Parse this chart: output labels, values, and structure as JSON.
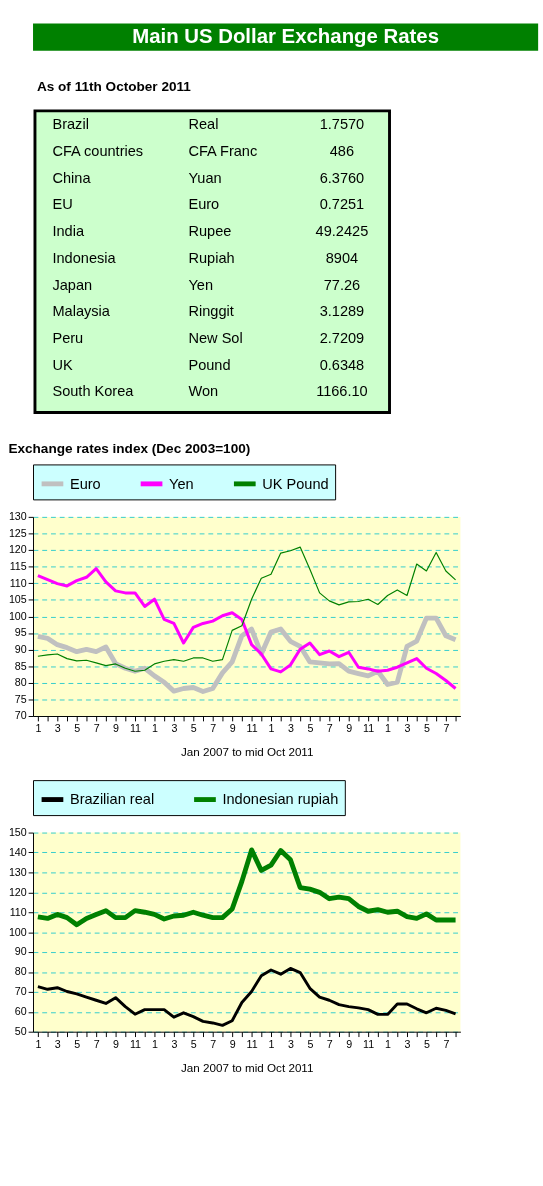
{
  "chart_data": [
    {
      "type": "other",
      "title": "Main US Dollar Exchange Rates",
      "subtitle": "As of 11th October 2011",
      "annotations": [
        "Brazil",
        "Real",
        "1.7570",
        "CFA countries",
        "CFA Franc",
        "486",
        "China",
        "Yuan",
        "6.3760",
        "EU",
        "Euro",
        "0.7251",
        "India",
        "Rupee",
        "49.2425",
        "Indonesia",
        "Rupiah",
        "8904",
        "Japan",
        "Yen",
        "77.26",
        "Malaysia",
        "Ringgit",
        "3.1289",
        "Peru",
        "New Sol",
        "2.7209",
        "UK",
        "Pound",
        "0.6348",
        "South Korea",
        "Won",
        "1166.10"
      ]
    },
    {
      "type": "line",
      "title": "Exchange rates index (Dec 2003=100)",
      "xlabel": "Jan 2007 to mid Oct  2011",
      "categories": [
        "1",
        null,
        "3",
        null,
        "5",
        null,
        "7",
        null,
        "9",
        null,
        "11",
        null,
        "1",
        null,
        "3",
        null,
        "5",
        null,
        "7",
        null,
        "9",
        null,
        "11",
        null,
        "1",
        null,
        "3",
        null,
        "5",
        null,
        "7",
        null,
        "9",
        null,
        "11",
        null,
        "1",
        null,
        "3",
        null,
        "5",
        null,
        "7",
        null
      ],
      "series": [
        {
          "name": "Euro",
          "color": "#c0c0c0",
          "values": [
            94.0,
            93.4,
            91.5,
            90.6,
            89.4,
            90.1,
            89.4,
            90.8,
            85.8,
            84.4,
            83.5,
            84.4,
            82.1,
            80.2,
            77.5,
            78.3,
            78.6,
            77.4,
            78.3,
            83.0,
            86.3,
            94.2,
            96.2,
            88.7,
            95.3,
            96.2,
            92.5,
            91.0,
            86.3,
            86.0,
            85.7,
            85.8,
            83.5,
            82.8,
            82.1,
            83.5,
            79.5,
            80.2,
            91.0,
            92.6,
            99.5,
            99.5,
            94.2,
            93.0
          ]
        },
        {
          "name": "Yen",
          "color": "#ff00ff",
          "values": [
            112.3,
            111.1,
            109.9,
            109.2,
            110.8,
            111.8,
            114.4,
            110.4,
            107.7,
            107.1,
            107.1,
            103.0,
            105.2,
            99.1,
            97.9,
            92.0,
            96.7,
            97.9,
            98.6,
            100.2,
            101.1,
            99.1,
            91.5,
            88.7,
            84.2,
            83.3,
            85.4,
            90.1,
            92.0,
            88.5,
            89.6,
            87.9,
            89.2,
            84.7,
            84.2,
            83.5,
            83.8,
            84.7,
            86.0,
            87.3,
            84.4,
            82.8,
            80.7,
            78.3
          ]
        },
        {
          "name": "UK Pound",
          "color": "#008000",
          "values": [
            88.0,
            88.4,
            88.7,
            87.3,
            86.6,
            86.8,
            86.0,
            85.2,
            85.7,
            84.4,
            83.5,
            83.8,
            85.7,
            86.5,
            87.0,
            86.5,
            87.5,
            87.5,
            86.5,
            87.0,
            95.8,
            97.2,
            105.2,
            111.5,
            112.7,
            119.1,
            119.8,
            120.9,
            114.2,
            107.1,
            104.7,
            103.5,
            104.4,
            104.5,
            105.2,
            103.6,
            106.3,
            108.0,
            106.3,
            115.8,
            113.7,
            119.3,
            113.7,
            111.0
          ]
        }
      ],
      "ylim": [
        70,
        130
      ],
      "yticks": [
        70,
        75,
        80,
        85,
        90,
        95,
        100,
        105,
        110,
        115,
        120,
        125,
        130
      ],
      "grid": "y",
      "legend": "top"
    },
    {
      "type": "line",
      "xlabel": "Jan 2007 to mid Oct 2011",
      "categories": [
        "1",
        null,
        "3",
        null,
        "5",
        null,
        "7",
        null,
        "9",
        null,
        "11",
        null,
        "1",
        null,
        "3",
        null,
        "5",
        null,
        "7",
        null,
        "9",
        null,
        "11",
        null,
        "1",
        null,
        "3",
        null,
        "5",
        null,
        "7",
        null,
        "9",
        null,
        "11",
        null,
        "1",
        null,
        "3",
        null,
        "5",
        null,
        "7",
        null
      ],
      "series": [
        {
          "name": "Brazilian real",
          "color": "#000000",
          "values": [
            72.6,
            71.3,
            72.1,
            70.2,
            69.0,
            67.4,
            65.8,
            64.2,
            67.1,
            62.6,
            58.8,
            61.1,
            61.1,
            61.1,
            57.3,
            59.5,
            57.6,
            55.2,
            54.4,
            53.2,
            55.5,
            64.7,
            70.2,
            78.1,
            81.0,
            78.9,
            81.8,
            79.7,
            71.8,
            67.4,
            65.8,
            63.6,
            62.6,
            62.0,
            61.1,
            58.7,
            58.7,
            63.9,
            63.9,
            61.5,
            59.5,
            61.8,
            60.7,
            59.0
          ]
        },
        {
          "name": "Indonesian rupiah",
          "color": "#008000",
          "values": [
            107.7,
            106.9,
            108.9,
            107.3,
            103.7,
            106.9,
            108.9,
            110.8,
            107.3,
            107.3,
            110.8,
            110.0,
            108.9,
            106.6,
            108.1,
            108.5,
            110.0,
            108.5,
            107.3,
            107.3,
            111.6,
            125.5,
            141.3,
            131.0,
            133.7,
            141.0,
            136.3,
            122.4,
            121.6,
            120.0,
            116.8,
            117.6,
            116.8,
            112.9,
            110.5,
            111.3,
            110.0,
            110.5,
            107.8,
            106.9,
            109.2,
            106.1,
            106.1,
            106.1
          ]
        }
      ],
      "ylim": [
        50,
        150
      ],
      "yticks": [
        50,
        60,
        70,
        80,
        90,
        100,
        110,
        120,
        130,
        140,
        150
      ],
      "grid": "y",
      "legend": "top"
    }
  ]
}
